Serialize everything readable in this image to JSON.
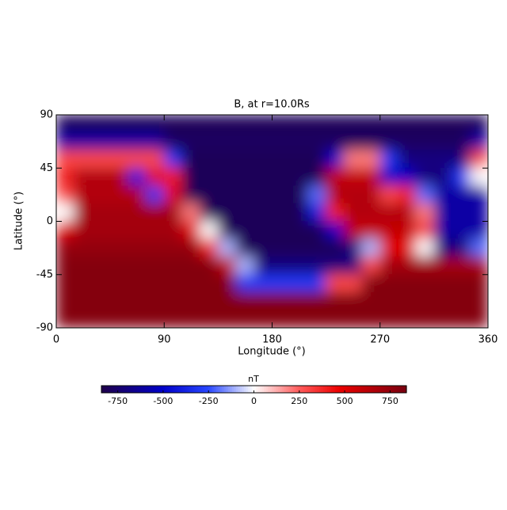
{
  "chart_data": {
    "type": "heatmap",
    "title": "B, at r=10.0Rs",
    "xlabel": "Longitude (°)",
    "ylabel": "Latitude (°)",
    "xlim": [
      0,
      360
    ],
    "xticks": [
      0,
      90,
      180,
      270,
      360
    ],
    "ylim": [
      -90,
      90
    ],
    "yticks": [
      -90,
      -45,
      0,
      45,
      90
    ],
    "x": [
      7.5,
      22.5,
      37.5,
      52.5,
      67.5,
      82.5,
      97.5,
      112.5,
      127.5,
      142.5,
      157.5,
      172.5,
      187.5,
      202.5,
      217.5,
      232.5,
      247.5,
      262.5,
      277.5,
      292.5,
      307.5,
      322.5,
      337.5,
      352.5
    ],
    "y": [
      82.5,
      67.5,
      52.5,
      37.5,
      22.5,
      7.5,
      -7.5,
      -22.5,
      -37.5,
      -52.5,
      -67.5,
      -82.5
    ],
    "z": [
      [
        -800,
        -800,
        -800,
        -800,
        -800,
        -800,
        -800,
        -800,
        -800,
        -800,
        -800,
        -800,
        -800,
        -800,
        -800,
        -800,
        -800,
        -800,
        -800,
        -800,
        -800,
        -800,
        -800,
        -800
      ],
      [
        -600,
        -600,
        -600,
        -600,
        -600,
        -600,
        -780,
        -780,
        -780,
        -780,
        -780,
        -780,
        -780,
        -780,
        -780,
        -780,
        -780,
        -780,
        -780,
        -780,
        -780,
        -780,
        -780,
        -600
      ],
      [
        300,
        300,
        300,
        300,
        300,
        300,
        -300,
        -800,
        -800,
        -800,
        -800,
        -800,
        -800,
        -800,
        -800,
        -500,
        200,
        200,
        -300,
        -700,
        -700,
        -700,
        -700,
        300
      ],
      [
        400,
        650,
        650,
        650,
        -400,
        500,
        400,
        -800,
        -800,
        -800,
        -800,
        -800,
        -800,
        -800,
        -800,
        600,
        600,
        600,
        -500,
        -500,
        -700,
        -700,
        -300,
        0
      ],
      [
        300,
        650,
        650,
        650,
        650,
        -300,
        500,
        -800,
        -800,
        -800,
        -800,
        -800,
        -800,
        -800,
        -200,
        650,
        650,
        650,
        300,
        400,
        -200,
        -600,
        -600,
        -600
      ],
      [
        0,
        700,
        700,
        700,
        700,
        700,
        700,
        200,
        -800,
        -800,
        -800,
        -800,
        -800,
        -800,
        -400,
        400,
        650,
        650,
        650,
        650,
        200,
        -600,
        -600,
        -600
      ],
      [
        500,
        700,
        700,
        700,
        700,
        700,
        700,
        500,
        0,
        -800,
        -800,
        -800,
        -800,
        -800,
        -800,
        -500,
        600,
        600,
        600,
        600,
        300,
        -600,
        -600,
        -600
      ],
      [
        750,
        750,
        750,
        750,
        750,
        750,
        750,
        750,
        400,
        -100,
        -800,
        -800,
        -800,
        -800,
        -800,
        -800,
        -700,
        -100,
        500,
        500,
        0,
        -700,
        -700,
        -200
      ],
      [
        800,
        800,
        800,
        800,
        800,
        800,
        800,
        800,
        800,
        600,
        -100,
        -700,
        -700,
        -700,
        -700,
        -700,
        -700,
        300,
        700,
        700,
        700,
        700,
        700,
        700
      ],
      [
        800,
        800,
        800,
        800,
        800,
        800,
        800,
        800,
        800,
        800,
        -300,
        -300,
        -300,
        -300,
        -300,
        300,
        300,
        800,
        800,
        800,
        800,
        800,
        800,
        800
      ],
      [
        800,
        800,
        800,
        800,
        800,
        800,
        800,
        800,
        800,
        800,
        800,
        800,
        800,
        800,
        800,
        800,
        800,
        800,
        800,
        800,
        800,
        800,
        800,
        800
      ],
      [
        800,
        800,
        800,
        800,
        800,
        800,
        800,
        800,
        800,
        800,
        800,
        800,
        800,
        800,
        800,
        800,
        800,
        800,
        800,
        800,
        800,
        800,
        800,
        800
      ]
    ],
    "colorbar": {
      "label": "nT",
      "clim": [
        -840,
        840
      ],
      "ticks": [
        -750,
        -500,
        -250,
        0,
        250,
        500,
        750
      ]
    }
  }
}
